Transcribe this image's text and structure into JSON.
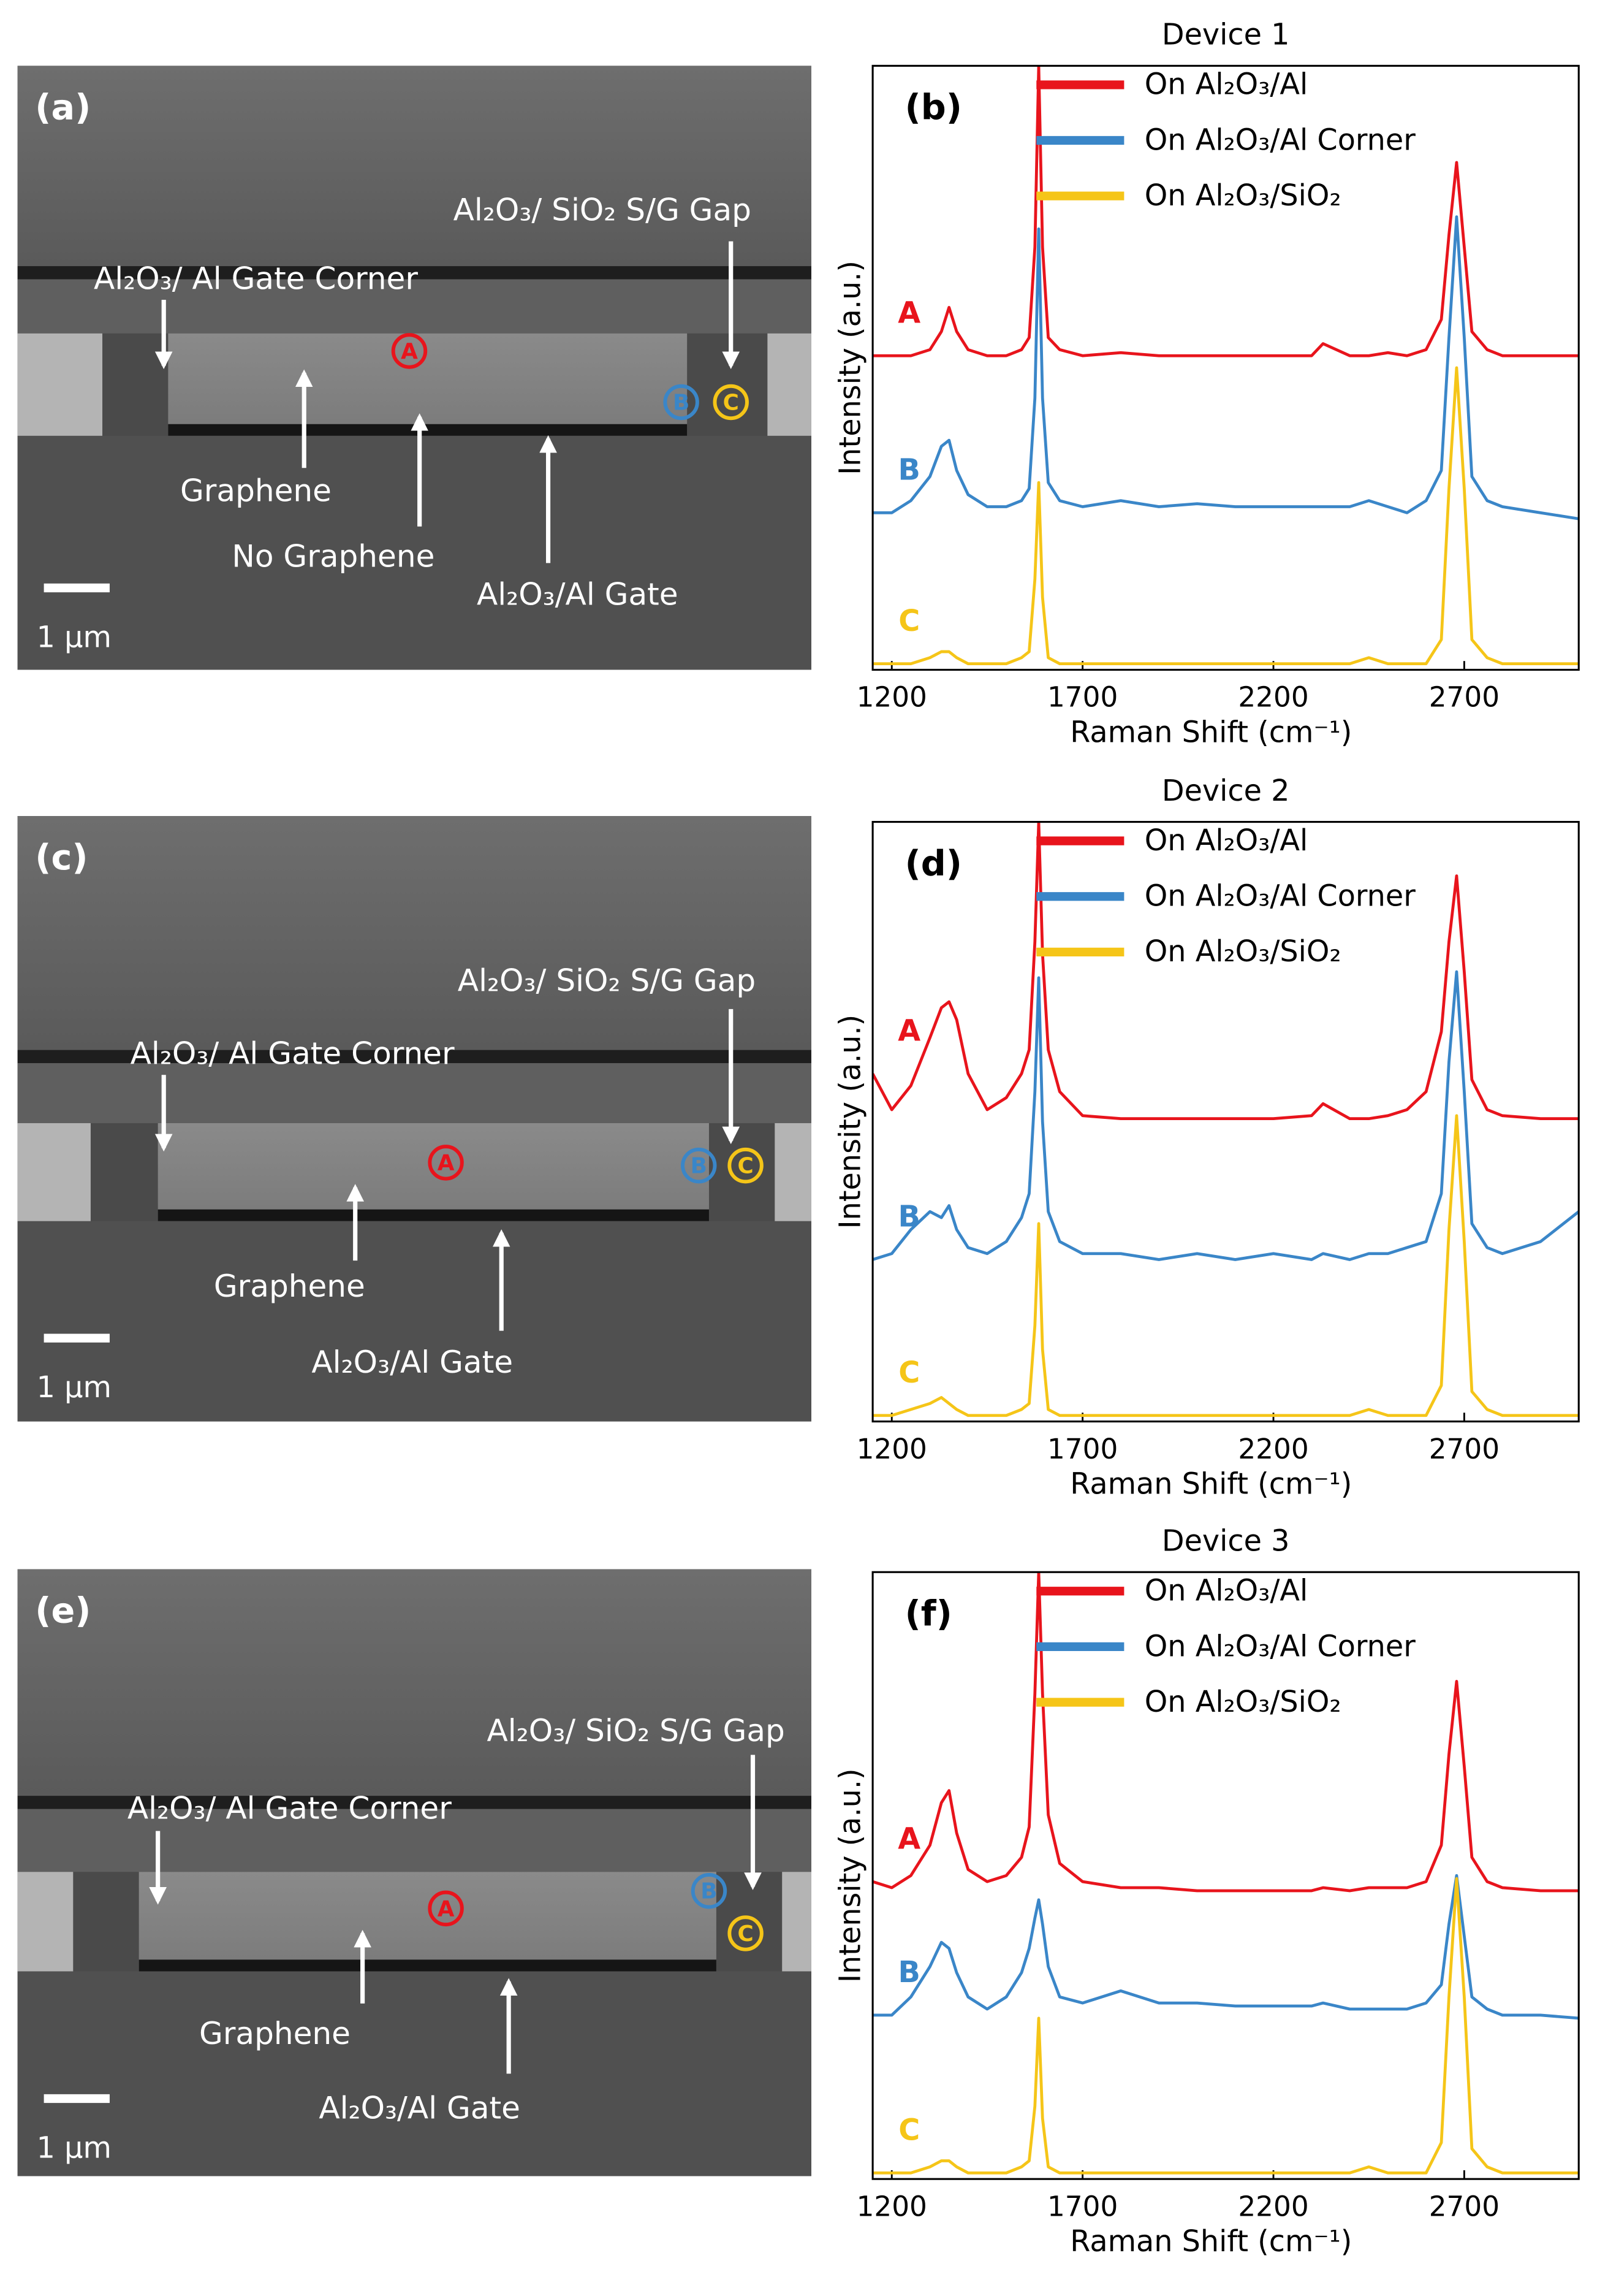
{
  "sem_images": [
    {
      "panel_label": "(a)",
      "scale_bar": "1 µm",
      "markers": [
        "A",
        "B",
        "C"
      ],
      "annotations": [
        "Al₂O₃/ SiO₂ S/G Gap",
        "Al₂O₃/ Al Gate Corner",
        "Graphene",
        "No Graphene",
        "Al₂O₃/Al Gate"
      ]
    },
    {
      "panel_label": "(c)",
      "scale_bar": "1 µm",
      "markers": [
        "A",
        "B",
        "C"
      ],
      "annotations": [
        "Al₂O₃/ SiO₂ S/G Gap",
        "Al₂O₃/ Al Gate Corner",
        "Graphene",
        "Al₂O₃/Al Gate"
      ]
    },
    {
      "panel_label": "(e)",
      "scale_bar": "1 µm",
      "markers": [
        "A",
        "B",
        "C"
      ],
      "annotations": [
        "Al₂O₃/ SiO₂ S/G Gap",
        "Al₂O₃/ Al Gate Corner",
        "Graphene",
        "Al₂O₃/Al Gate"
      ]
    }
  ],
  "chart_data": [
    {
      "type": "line",
      "title": "Device 1",
      "panel_label": "(b)",
      "x_label": "Raman Shift (cm⁻¹)",
      "y_label": "Intensity (a.u.)",
      "x": [
        1150,
        1200,
        1250,
        1300,
        1330,
        1350,
        1370,
        1400,
        1450,
        1500,
        1540,
        1560,
        1575,
        1585,
        1595,
        1610,
        1640,
        1700,
        1800,
        1900,
        2000,
        2100,
        2200,
        2300,
        2330,
        2400,
        2450,
        2500,
        2550,
        2600,
        2640,
        2660,
        2680,
        2700,
        2720,
        2760,
        2800,
        2900,
        3000
      ],
      "xlim": [
        1150,
        3000
      ],
      "ylim": [
        0,
        100
      ],
      "xticks": [
        1200,
        1700,
        2200,
        2700
      ],
      "series": [
        {
          "name": "On Al₂O₃/Al",
          "label": "A",
          "color": "#e8141c",
          "values": [
            52,
            52,
            52,
            53,
            56,
            60,
            56,
            53,
            52,
            52,
            53,
            55,
            70,
            100,
            70,
            55,
            53,
            52,
            52.5,
            52,
            52,
            52,
            52,
            52,
            54,
            52,
            52,
            52.5,
            52,
            53,
            58,
            72,
            84,
            70,
            56,
            53,
            52,
            52,
            52
          ]
        },
        {
          "name": "On Al₂O₃/Al Corner",
          "label": "B",
          "color": "#3a86c8",
          "values": [
            26,
            26,
            28,
            32,
            37,
            38,
            33,
            29,
            27,
            27,
            28,
            30,
            45,
            73,
            45,
            31,
            28,
            27,
            28,
            27,
            27.5,
            27,
            27,
            27,
            27,
            27,
            28,
            27,
            26,
            28,
            33,
            55,
            75,
            55,
            32,
            28,
            27,
            26,
            25
          ]
        },
        {
          "name": "On Al₂O₃/SiO₂",
          "label": "C",
          "color": "#f5c518",
          "values": [
            1,
            1,
            1,
            2,
            3,
            3,
            2,
            1,
            1,
            1,
            2,
            3,
            15,
            31,
            12,
            2,
            1,
            1,
            1,
            1,
            1,
            1,
            1,
            1,
            1,
            1,
            2,
            1,
            1,
            1,
            5,
            30,
            50,
            30,
            5,
            2,
            1,
            1,
            1
          ]
        }
      ]
    },
    {
      "type": "line",
      "title": "Device 2",
      "panel_label": "(d)",
      "x_label": "Raman Shift (cm⁻¹)",
      "y_label": "Intensity (a.u.)",
      "x": [
        1150,
        1200,
        1250,
        1300,
        1330,
        1350,
        1370,
        1400,
        1450,
        1500,
        1540,
        1560,
        1575,
        1585,
        1595,
        1610,
        1640,
        1700,
        1800,
        1900,
        2000,
        2100,
        2200,
        2300,
        2330,
        2400,
        2450,
        2500,
        2550,
        2600,
        2640,
        2660,
        2680,
        2700,
        2720,
        2760,
        2800,
        2900,
        3000
      ],
      "xlim": [
        1150,
        3000
      ],
      "ylim": [
        0,
        100
      ],
      "xticks": [
        1200,
        1700,
        2200,
        2700
      ],
      "series": [
        {
          "name": "On Al₂O₃/Al",
          "label": "A",
          "color": "#e8141c",
          "values": [
            58,
            52,
            56,
            64,
            69,
            70,
            67,
            58,
            52,
            54,
            58,
            62,
            80,
            100,
            78,
            62,
            55,
            51,
            50.5,
            50.5,
            50.5,
            50.5,
            50.5,
            51,
            53,
            50.5,
            50.5,
            51,
            52,
            55,
            65,
            80,
            91,
            75,
            57,
            52,
            51,
            50.5,
            50.5
          ]
        },
        {
          "name": "On Al₂O₃/Al Corner",
          "label": "B",
          "color": "#3a86c8",
          "values": [
            27,
            28,
            32,
            35,
            34,
            36,
            32,
            29,
            28,
            30,
            34,
            38,
            55,
            74,
            50,
            35,
            30,
            28,
            28,
            27,
            28,
            27,
            28,
            27,
            28,
            27,
            28,
            28,
            29,
            30,
            38,
            60,
            75,
            55,
            33,
            29,
            28,
            30,
            35
          ]
        },
        {
          "name": "On Al₂O₃/SiO₂",
          "label": "C",
          "color": "#f5c518",
          "values": [
            1,
            1,
            2,
            3,
            4,
            3,
            2,
            1,
            1,
            1,
            2,
            3,
            16,
            33,
            12,
            2,
            1,
            1,
            1,
            1,
            1,
            1,
            1,
            1,
            1,
            1,
            2,
            1,
            1,
            1,
            6,
            32,
            51,
            30,
            5,
            2,
            1,
            1,
            1
          ]
        }
      ]
    },
    {
      "type": "line",
      "title": "Device 3",
      "panel_label": "(f)",
      "x_label": "Raman Shift (cm⁻¹)",
      "y_label": "Intensity (a.u.)",
      "x": [
        1150,
        1200,
        1250,
        1300,
        1330,
        1350,
        1370,
        1400,
        1450,
        1500,
        1540,
        1560,
        1575,
        1585,
        1595,
        1610,
        1640,
        1700,
        1800,
        1900,
        2000,
        2100,
        2200,
        2300,
        2330,
        2400,
        2450,
        2500,
        2550,
        2600,
        2640,
        2660,
        2680,
        2700,
        2720,
        2760,
        2800,
        2900,
        3000
      ],
      "xlim": [
        1150,
        3000
      ],
      "ylim": [
        0,
        100
      ],
      "xticks": [
        1200,
        1700,
        2200,
        2700
      ],
      "series": [
        {
          "name": "On Al₂O₃/Al",
          "label": "A",
          "color": "#e8141c",
          "values": [
            49,
            48,
            50,
            55,
            62,
            64,
            57,
            51,
            49,
            50,
            53,
            58,
            80,
            100,
            80,
            60,
            52,
            49,
            48,
            48,
            47.5,
            47.5,
            47.5,
            47.5,
            48,
            47.5,
            48,
            48,
            48,
            49,
            55,
            70,
            82,
            68,
            53,
            49,
            48,
            47.5,
            47.5
          ]
        },
        {
          "name": "On Al₂O₃/Al Corner",
          "label": "B",
          "color": "#3a86c8",
          "values": [
            27,
            27,
            30,
            35,
            39,
            38,
            34,
            30,
            28,
            30,
            34,
            38,
            43,
            46,
            42,
            35,
            30,
            29,
            31,
            29,
            29,
            28.5,
            28.5,
            28.5,
            29,
            28,
            28,
            28,
            28,
            29,
            32,
            42,
            50,
            40,
            30,
            28,
            27,
            27,
            26.5
          ]
        },
        {
          "name": "On Al₂O₃/SiO₂",
          "label": "C",
          "color": "#f5c518",
          "values": [
            1,
            1,
            1,
            2,
            3,
            3,
            2,
            1,
            1,
            1,
            2,
            3,
            12,
            26.5,
            10,
            2,
            1,
            1,
            1,
            1,
            1,
            1,
            1,
            1,
            1,
            1,
            2,
            1,
            1,
            1,
            6,
            30,
            49.5,
            30,
            5,
            2,
            1,
            1,
            1
          ]
        }
      ]
    }
  ]
}
